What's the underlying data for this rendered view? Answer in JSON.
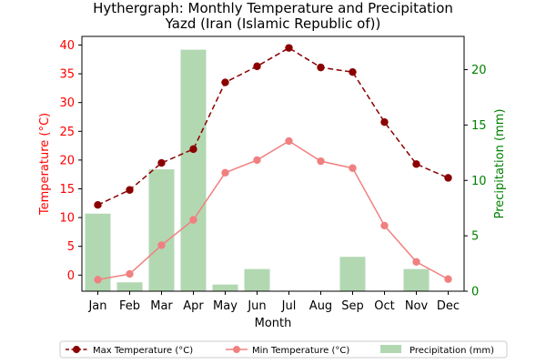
{
  "chart_data": {
    "type": "bar",
    "title": "Hythergraph: Monthly Temperature and Precipitation",
    "subtitle": "Yazd (Iran (Islamic Republic of))",
    "xlabel": "Month",
    "ylabel_left": "Temperature (°C)",
    "ylabel_right": "Precipitation (mm)",
    "categories": [
      "Jan",
      "Feb",
      "Mar",
      "Apr",
      "May",
      "Jun",
      "Jul",
      "Aug",
      "Sep",
      "Oct",
      "Nov",
      "Dec"
    ],
    "ylim_left": [
      -2.8,
      41.5
    ],
    "ylim_right": [
      0,
      23.0
    ],
    "yticks_left": [
      0,
      5,
      10,
      15,
      20,
      25,
      30,
      35,
      40
    ],
    "yticks_right": [
      0,
      5,
      10,
      15,
      20
    ],
    "series": [
      {
        "name": "Max Temperature (°C)",
        "kind": "line",
        "axis": "left",
        "color": "#8b0000",
        "style": "dashed",
        "values": [
          12.2,
          14.8,
          19.5,
          21.9,
          33.5,
          36.3,
          39.5,
          36.1,
          35.3,
          26.6,
          19.3,
          16.9
        ]
      },
      {
        "name": "Min Temperature (°C)",
        "kind": "line",
        "axis": "left",
        "color": "#f08080",
        "style": "solid",
        "values": [
          -0.8,
          0.2,
          5.2,
          9.6,
          17.8,
          20.0,
          23.3,
          19.8,
          18.6,
          8.6,
          2.3,
          -0.7
        ]
      },
      {
        "name": "Precipitation (mm)",
        "kind": "bar",
        "axis": "right",
        "color": "#b2d8b2",
        "values": [
          7.0,
          0.8,
          11.0,
          21.8,
          0.6,
          2.0,
          0,
          0,
          3.1,
          0,
          2.0,
          0
        ]
      }
    ],
    "legend_position": "bottom-center",
    "colors": {
      "left_axis": "#ff0000",
      "right_axis": "#008000",
      "frame": "#000000"
    }
  }
}
